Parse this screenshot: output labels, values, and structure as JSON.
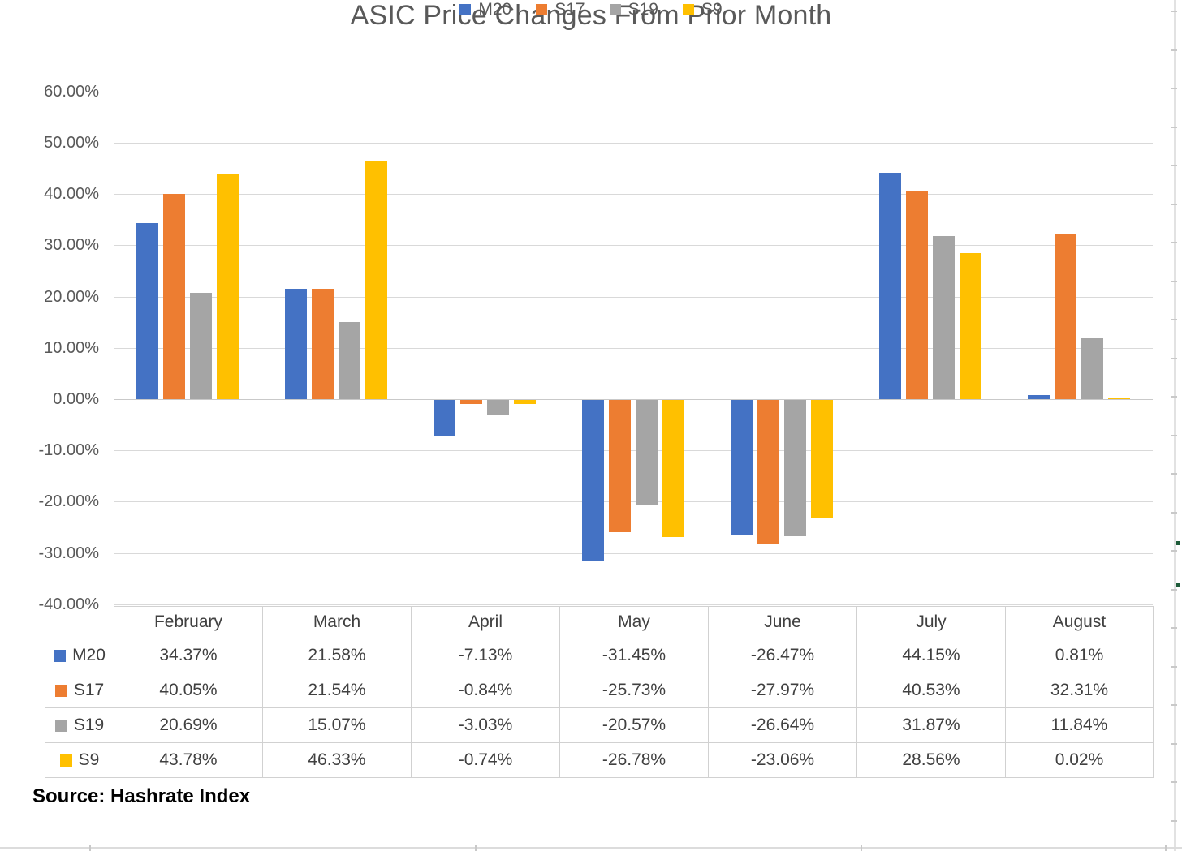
{
  "title": "ASIC Price Changes From Prior Month",
  "source_label": "Source: Hashrate Index",
  "colors": {
    "M20": "#4472C4",
    "S17": "#ED7D31",
    "S19": "#A5A5A5",
    "S9": "#FFC000",
    "grid": "#D9D9D9",
    "axis_text": "#595959",
    "table_text": "#404040"
  },
  "chart_data": {
    "type": "bar",
    "title": "ASIC Price Changes From Prior Month",
    "categories": [
      "February",
      "March",
      "April",
      "May",
      "June",
      "July",
      "August"
    ],
    "series": [
      {
        "name": "M20",
        "color": "#4472C4",
        "values": [
          34.37,
          21.58,
          -7.13,
          -31.45,
          -26.47,
          44.15,
          0.81
        ]
      },
      {
        "name": "S17",
        "color": "#ED7D31",
        "values": [
          40.05,
          21.54,
          -0.84,
          -25.73,
          -27.97,
          40.53,
          32.31
        ]
      },
      {
        "name": "S19",
        "color": "#A5A5A5",
        "values": [
          20.69,
          15.07,
          -3.03,
          -20.57,
          -26.64,
          31.87,
          11.84
        ]
      },
      {
        "name": "S9",
        "color": "#FFC000",
        "values": [
          43.78,
          46.33,
          -0.74,
          -26.78,
          -23.06,
          28.56,
          0.02
        ]
      }
    ],
    "xlabel": "",
    "ylabel": "",
    "ylim": [
      -40,
      60
    ],
    "ytick_step": 10,
    "ytick_labels": [
      "60.00%",
      "50.00%",
      "40.00%",
      "30.00%",
      "20.00%",
      "10.00%",
      "0.00%",
      "-10.00%",
      "-20.00%",
      "-30.00%",
      "-40.00%"
    ],
    "grid": true,
    "legend_position": "bottom",
    "data_table_shown": true
  },
  "table": {
    "headers": [
      "February",
      "March",
      "April",
      "May",
      "June",
      "July",
      "August"
    ],
    "rows": [
      {
        "name": "M20",
        "values": [
          "34.37%",
          "21.58%",
          "-7.13%",
          "-31.45%",
          "-26.47%",
          "44.15%",
          "0.81%"
        ]
      },
      {
        "name": "S17",
        "values": [
          "40.05%",
          "21.54%",
          "-0.84%",
          "-25.73%",
          "-27.97%",
          "40.53%",
          "32.31%"
        ]
      },
      {
        "name": "S19",
        "values": [
          "20.69%",
          "15.07%",
          "-3.03%",
          "-20.57%",
          "-26.64%",
          "31.87%",
          "11.84%"
        ]
      },
      {
        "name": "S9",
        "values": [
          "43.78%",
          "46.33%",
          "-0.74%",
          "-26.78%",
          "-23.06%",
          "28.56%",
          "0.02%"
        ]
      }
    ]
  },
  "legend": {
    "items": [
      "M20",
      "S17",
      "S19",
      "S9"
    ]
  }
}
